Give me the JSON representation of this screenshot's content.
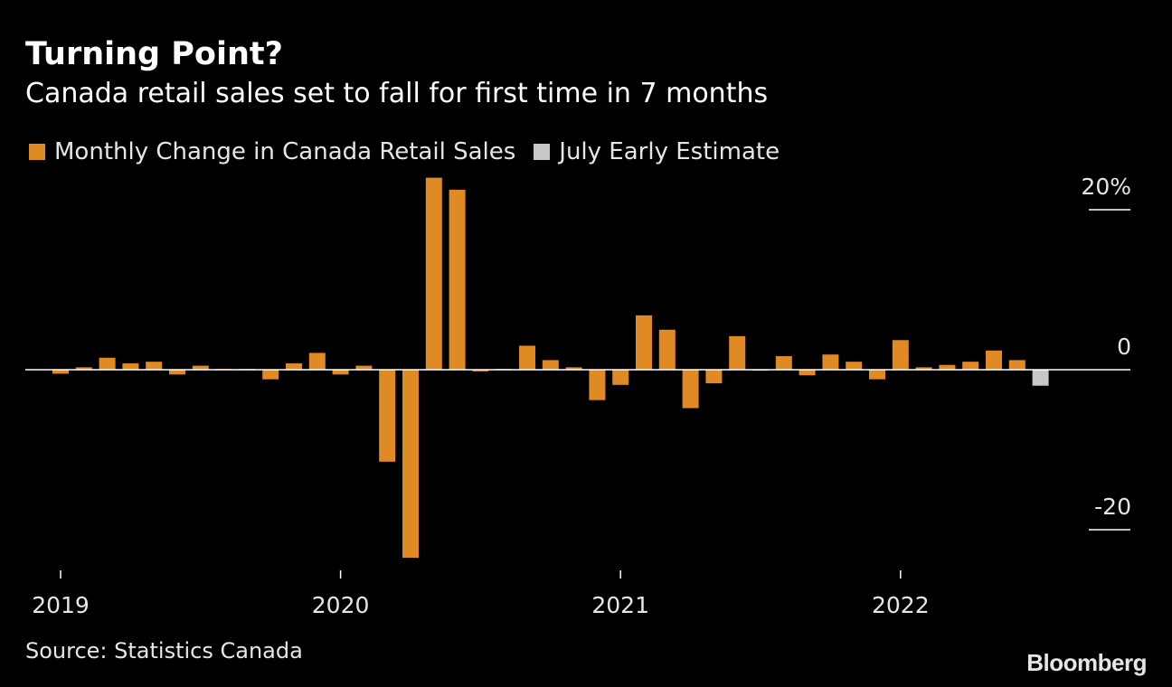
{
  "title": "Turning Point?",
  "subtitle": "Canada retail sales set to fall for first time in 7 months",
  "legend": [
    {
      "label": "Monthly Change in Canada Retail Sales",
      "color": "#e08a24"
    },
    {
      "label": "July Early Estimate",
      "color": "#c8c8c8"
    }
  ],
  "source": "Source: Statistics Canada",
  "brand": "Bloomberg",
  "chart_data": {
    "type": "bar",
    "ylim": [
      -23.5,
      24.0
    ],
    "y_ticks": [
      {
        "value": 20,
        "label": "20%"
      },
      {
        "value": 0,
        "label": "0"
      },
      {
        "value": -20,
        "label": "-20"
      }
    ],
    "x_ticks": [
      {
        "index": 0,
        "label": "2019"
      },
      {
        "index": 12,
        "label": "2020"
      },
      {
        "index": 24,
        "label": "2021"
      },
      {
        "index": 36,
        "label": "2022"
      }
    ],
    "series": [
      {
        "name": "Monthly Change in Canada Retail Sales",
        "color": "#e08a24",
        "start_index": 0,
        "values": [
          -0.5,
          0.3,
          1.5,
          0.8,
          1.0,
          -0.6,
          0.5,
          0.1,
          0.1,
          -1.2,
          0.8,
          2.1,
          -0.6,
          0.5,
          -11.5,
          -23.5,
          24.0,
          22.5,
          -0.2,
          0.1,
          3.0,
          1.2,
          0.3,
          -3.8,
          -1.9,
          6.8,
          5.0,
          -4.8,
          -1.7,
          4.2,
          -0.1,
          1.7,
          -0.7,
          1.9,
          1.0,
          -1.2,
          3.7,
          0.3,
          0.6,
          1.0,
          2.4,
          1.2
        ]
      },
      {
        "name": "July Early Estimate",
        "color": "#c8c8c8",
        "start_index": 42,
        "values": [
          -2.0
        ]
      }
    ]
  }
}
